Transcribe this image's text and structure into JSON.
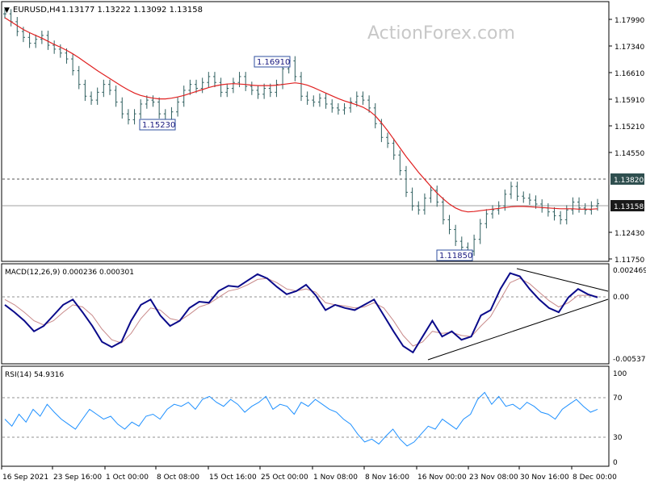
{
  "header": {
    "symbol_label": "EURUSD,H4",
    "ohlc": "1.13177 1.13222 1.13092 1.13158",
    "watermark": "ActionForex.com"
  },
  "colors": {
    "price_bar": "#2f5f5f",
    "moving_average": "#e02020",
    "macd_line": "#0a0a8a",
    "macd_signal": "#c88a8a",
    "rsi_line": "#1e90ff",
    "trendline": "#000000",
    "grid_border": "#000000",
    "level_label_bg": "#2f4f4f",
    "price_label_bg": "#1a1a1a"
  },
  "x_axis_labels": [
    "16 Sep 2021",
    "23 Sep 16:00",
    "1 Oct 00:00",
    "8 Oct 08:00",
    "15 Oct 16:00",
    "25 Oct 00:00",
    "1 Nov 08:00",
    "8 Nov 16:00",
    "16 Nov 00:00",
    "23 Nov 08:00",
    "30 Nov 16:00",
    "8 Dec 00:00"
  ],
  "chart_data": [
    {
      "type": "line",
      "panel": "price",
      "title": "EURUSD,H4",
      "subtitle": "1.13177 1.13222 1.13092 1.13158",
      "y_ticks": [
        "1.17990",
        "1.17340",
        "1.16610",
        "1.15910",
        "1.15210",
        "1.14550",
        "1.13820",
        "1.13158",
        "1.12430",
        "1.11750"
      ],
      "ylim": [
        1.1175,
        1.1825
      ],
      "series": [
        {
          "name": "",
          "values": [
            1.18,
            1.178,
            1.1755,
            1.174,
            1.1725,
            1.1735,
            1.1745,
            1.172,
            1.171,
            1.17,
            1.1685,
            1.1655,
            1.162,
            1.159,
            1.158,
            1.16,
            1.162,
            1.1605,
            1.1575,
            1.1545,
            1.153,
            1.1545,
            1.157,
            1.158,
            1.1575,
            1.1545,
            1.153,
            1.155,
            1.1575,
            1.1605,
            1.162,
            1.161,
            1.1625,
            1.164,
            1.1625,
            1.16,
            1.161,
            1.1625,
            1.164,
            1.1615,
            1.1605,
            1.1595,
            1.161,
            1.16,
            1.162,
            1.166,
            1.168,
            1.164,
            1.159,
            1.158,
            1.1575,
            1.1585,
            1.157,
            1.156,
            1.1555,
            1.156,
            1.1575,
            1.159,
            1.158,
            1.156,
            1.152,
            1.1485,
            1.147,
            1.144,
            1.14,
            1.1345,
            1.131,
            1.13,
            1.133,
            1.135,
            1.132,
            1.1275,
            1.125,
            1.122,
            1.1205,
            1.1195,
            1.1225,
            1.1265,
            1.129,
            1.13,
            1.131,
            1.134,
            1.136,
            1.1335,
            1.133,
            1.1325,
            1.1315,
            1.1305,
            1.1295,
            1.1285,
            1.1275,
            1.13,
            1.132,
            1.1305,
            1.13,
            1.131,
            1.1316
          ]
        },
        {
          "name": "",
          "values": [
            1.179,
            1.178,
            1.177,
            1.176,
            1.1752,
            1.1745,
            1.1738,
            1.173,
            1.1722,
            1.1715,
            1.1707,
            1.1698,
            1.1688,
            1.1677,
            1.1666,
            1.1655,
            1.1645,
            1.1635,
            1.1625,
            1.1615,
            1.1606,
            1.1598,
            1.1592,
            1.1588,
            1.1585,
            1.1583,
            1.1583,
            1.1585,
            1.1588,
            1.1592,
            1.1597,
            1.1602,
            1.1607,
            1.1612,
            1.1616,
            1.1619,
            1.1621,
            1.1622,
            1.1621,
            1.162,
            1.1618,
            1.1617,
            1.1617,
            1.1617,
            1.1618,
            1.162,
            1.1622,
            1.1624,
            1.1622,
            1.1618,
            1.1612,
            1.1605,
            1.1598,
            1.1591,
            1.1584,
            1.1578,
            1.1573,
            1.1568,
            1.1562,
            1.1553,
            1.154,
            1.1522,
            1.1502,
            1.148,
            1.1458,
            1.1436,
            1.1416,
            1.1396,
            1.1378,
            1.136,
            1.1343,
            1.1328,
            1.1315,
            1.1305,
            1.1298,
            1.1295,
            1.1296,
            1.1298,
            1.13,
            1.1302,
            1.1304,
            1.1306,
            1.1308,
            1.1309,
            1.1309,
            1.1308,
            1.1307,
            1.1306,
            1.1305,
            1.1304,
            1.1303,
            1.1303,
            1.1303,
            1.1302,
            1.1302,
            1.1302,
            1.1303
          ]
        }
      ],
      "annotations": [
        "1.15230",
        "1.16910",
        "1.11850"
      ],
      "levels": [
        "1.13820",
        "1.13158"
      ]
    },
    {
      "type": "line",
      "panel": "macd",
      "title": "MACD(12,26,9) 0.000236 0.000301",
      "y_ticks": [
        "0.002469",
        "0.00",
        "-0.005375"
      ],
      "ylim": [
        -0.006,
        0.003
      ],
      "series": [
        {
          "name": "",
          "values": [
            -0.0005,
            -0.0012,
            -0.002,
            -0.003,
            -0.0025,
            -0.0015,
            -0.0005,
            0.0,
            -0.0012,
            -0.0025,
            -0.004,
            -0.0045,
            -0.004,
            -0.002,
            -0.0005,
            0.0,
            -0.0015,
            -0.0025,
            -0.002,
            -0.0008,
            -0.0002,
            -0.0003,
            0.0008,
            0.0013,
            0.0012,
            0.0018,
            0.0024,
            0.002,
            0.0012,
            0.0005,
            0.0008,
            0.0014,
            0.0004,
            -0.001,
            -0.0005,
            -0.0008,
            -0.001,
            -0.0005,
            0.0,
            -0.0015,
            -0.003,
            -0.0044,
            -0.005,
            -0.0035,
            -0.002,
            -0.0035,
            -0.003,
            -0.0038,
            -0.0035,
            -0.0015,
            -0.001,
            0.001,
            0.0025,
            0.0022,
            0.001,
            0.0,
            -0.0008,
            -0.0012,
            0.0002,
            0.001,
            0.0005,
            0.0002
          ]
        },
        {
          "name": "",
          "values": [
            0.0,
            -0.0005,
            -0.0012,
            -0.002,
            -0.0024,
            -0.002,
            -0.0012,
            -0.0005,
            -0.0007,
            -0.0015,
            -0.0028,
            -0.0038,
            -0.0041,
            -0.0032,
            -0.0018,
            -0.0008,
            -0.001,
            -0.0018,
            -0.002,
            -0.0014,
            -0.0007,
            -0.0004,
            0.0002,
            0.0008,
            0.001,
            0.0014,
            0.0019,
            0.002,
            0.0016,
            0.001,
            0.0008,
            0.001,
            0.0007,
            -0.0003,
            -0.0005,
            -0.0006,
            -0.0008,
            -0.0007,
            -0.0003,
            -0.0008,
            -0.002,
            -0.0034,
            -0.0044,
            -0.004,
            -0.003,
            -0.0032,
            -0.0031,
            -0.0034,
            -0.0035,
            -0.0025,
            -0.0016,
            0.0,
            0.0016,
            0.002,
            0.0015,
            0.0007,
            -0.0001,
            -0.0007,
            -0.0003,
            0.0004,
            0.0004,
            0.0003
          ]
        }
      ]
    },
    {
      "type": "line",
      "panel": "rsi",
      "title": "RSI(14) 54.9316",
      "y_ticks": [
        "100",
        "70",
        "30",
        "0"
      ],
      "ylim": [
        0,
        100
      ],
      "levels": [
        70,
        30
      ],
      "series": [
        {
          "name": "",
          "values": [
            45,
            38,
            50,
            42,
            55,
            48,
            60,
            52,
            45,
            40,
            35,
            45,
            55,
            50,
            45,
            48,
            40,
            35,
            42,
            38,
            48,
            50,
            45,
            55,
            60,
            58,
            62,
            55,
            65,
            68,
            62,
            58,
            65,
            60,
            52,
            58,
            62,
            68,
            55,
            60,
            58,
            50,
            62,
            58,
            65,
            60,
            55,
            52,
            45,
            40,
            30,
            22,
            25,
            20,
            28,
            35,
            25,
            18,
            22,
            30,
            38,
            35,
            45,
            40,
            35,
            45,
            50,
            65,
            72,
            60,
            68,
            58,
            60,
            55,
            62,
            58,
            52,
            50,
            45,
            55,
            60,
            65,
            58,
            52,
            55
          ]
        }
      ]
    }
  ]
}
